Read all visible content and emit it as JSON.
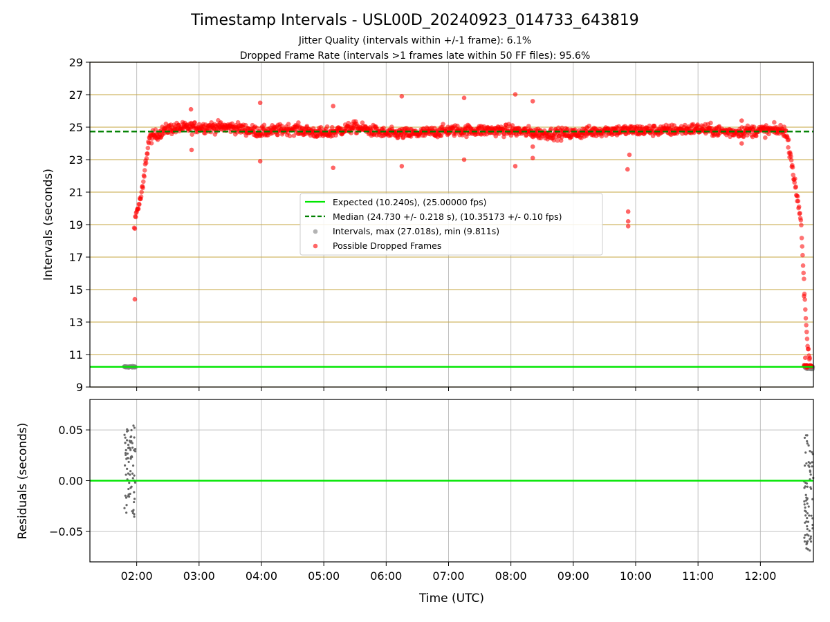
{
  "chart_data": {
    "type": "scatter",
    "title": "Timestamp Intervals - USL00D_20240923_014733_643819",
    "subtitle_lines": [
      "Jitter Quality (intervals within +/-1 frame): 6.1%",
      "Dropped Frame Rate (intervals >1 frames late within 50 FF files): 95.6%"
    ],
    "xlabel": "Time (UTC)",
    "x_unit": "hours UTC",
    "xlim": [
      1.25,
      12.85
    ],
    "xtick_values": [
      2,
      3,
      4,
      5,
      6,
      7,
      8,
      9,
      10,
      11,
      12
    ],
    "xtick_labels": [
      "02:00",
      "03:00",
      "04:00",
      "05:00",
      "06:00",
      "07:00",
      "08:00",
      "09:00",
      "10:00",
      "11:00",
      "12:00"
    ],
    "grid": true,
    "top_panel": {
      "ylabel": "Intervals (seconds)",
      "ylim": [
        9,
        29
      ],
      "ytick_labels": [
        "9",
        "11",
        "13",
        "15",
        "17",
        "19",
        "21",
        "23",
        "25",
        "27",
        "29"
      ],
      "expected_interval": 10.24,
      "median_interval": 24.73,
      "reference_line_color": "#c8aa4b",
      "expected_color": "#00e600",
      "median_color": "#008000",
      "interval_color": "#808080",
      "dropped_color": "#ff0000",
      "legend_position": "center",
      "legend": [
        "Expected (10.240s), (25.00000 fps)",
        "Median (24.730 +/- 0.218 s), (10.35173 +/- 0.10 fps)",
        "Intervals, max (27.018s), min (9.811s)",
        "Possible Dropped Frames"
      ],
      "normal_intervals_approx": {
        "start_cluster": {
          "x_range": [
            1.8,
            1.98
          ],
          "y": 10.24
        },
        "end_cluster": {
          "x_range": [
            12.7,
            12.85
          ],
          "y_range": [
            9.81,
            10.3
          ]
        }
      },
      "dropped_frames_trend": {
        "x": [
          1.97,
          2.0,
          2.05,
          2.1,
          2.15,
          2.2,
          2.3,
          2.4,
          2.5,
          3.0,
          3.5,
          4.0,
          4.5,
          5.0,
          5.5,
          6.0,
          6.5,
          7.0,
          7.5,
          8.0,
          8.5,
          9.0,
          9.5,
          10.0,
          10.5,
          11.0,
          11.5,
          12.0,
          12.4,
          12.5,
          12.55,
          12.6,
          12.65,
          12.7,
          12.75,
          12.8
        ],
        "y": [
          19.2,
          19.8,
          20.4,
          21.3,
          23.0,
          24.3,
          24.5,
          24.7,
          24.9,
          25.0,
          25.0,
          24.7,
          24.9,
          24.6,
          25.0,
          24.6,
          24.6,
          24.8,
          24.8,
          24.8,
          24.6,
          24.6,
          24.8,
          24.8,
          24.8,
          24.9,
          24.7,
          24.8,
          24.8,
          23.0,
          21.5,
          20.5,
          19.3,
          15.4,
          11.7,
          10.3
        ]
      },
      "dropped_frames_outliers": [
        {
          "x": 1.97,
          "y": 14.4
        },
        {
          "x": 1.96,
          "y": 18.8
        },
        {
          "x": 2.87,
          "y": 26.1
        },
        {
          "x": 2.88,
          "y": 23.6
        },
        {
          "x": 3.98,
          "y": 26.5
        },
        {
          "x": 3.98,
          "y": 22.9
        },
        {
          "x": 5.15,
          "y": 26.3
        },
        {
          "x": 5.15,
          "y": 22.5
        },
        {
          "x": 6.25,
          "y": 26.9
        },
        {
          "x": 6.25,
          "y": 22.6
        },
        {
          "x": 7.25,
          "y": 26.8
        },
        {
          "x": 7.25,
          "y": 23.0
        },
        {
          "x": 8.07,
          "y": 27.02
        },
        {
          "x": 8.07,
          "y": 22.6
        },
        {
          "x": 8.35,
          "y": 26.6
        },
        {
          "x": 8.35,
          "y": 23.8
        },
        {
          "x": 8.35,
          "y": 23.1
        },
        {
          "x": 9.87,
          "y": 22.4
        },
        {
          "x": 9.9,
          "y": 23.3
        },
        {
          "x": 9.88,
          "y": 19.8
        },
        {
          "x": 9.88,
          "y": 19.2
        },
        {
          "x": 9.88,
          "y": 18.9
        },
        {
          "x": 11.7,
          "y": 25.4
        },
        {
          "x": 11.7,
          "y": 24.0
        },
        {
          "x": 12.7,
          "y": 14.6
        },
        {
          "x": 12.72,
          "y": 10.8
        }
      ]
    },
    "bottom_panel": {
      "ylabel": "Residuals (seconds)",
      "ylim": [
        -0.08,
        0.08
      ],
      "ytick_values": [
        -0.05,
        0.0,
        0.05
      ],
      "ytick_labels": [
        "−0.05",
        "0.00",
        "0.05"
      ],
      "zero_line_color": "#00e600",
      "point_color": "#666666",
      "residual_clusters": [
        {
          "x_range": [
            1.8,
            1.98
          ],
          "y_range": [
            -0.037,
            0.055
          ]
        },
        {
          "x_range": [
            12.7,
            12.85
          ],
          "y_range": [
            -0.071,
            0.046
          ]
        }
      ]
    }
  }
}
